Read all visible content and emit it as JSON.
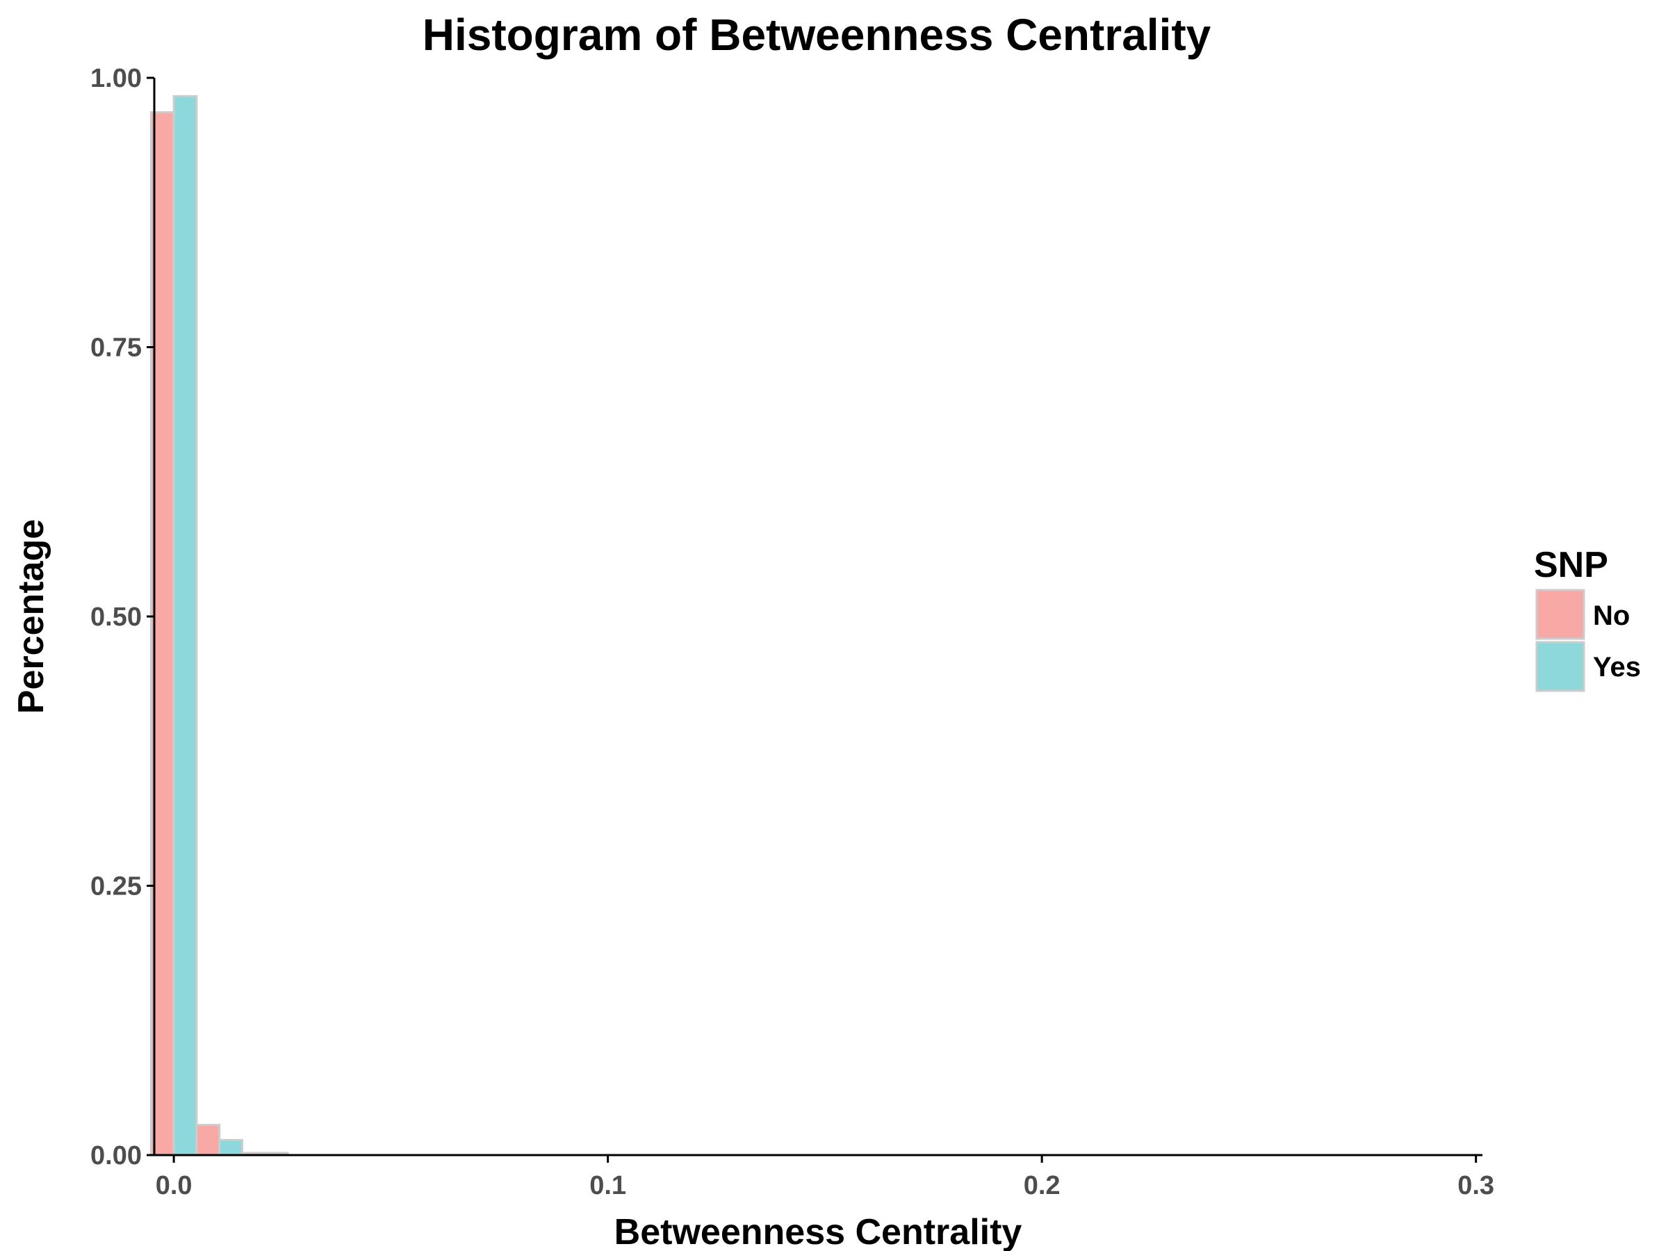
{
  "chart_data": {
    "type": "bar",
    "title": "Histogram of Betweenness Centrality",
    "xlabel": "Betweenness Centrality",
    "ylabel": "Percentage",
    "xlim": [
      -0.0045,
      0.3015
    ],
    "ylim": [
      0,
      1.0
    ],
    "x_ticks": [
      "0.0",
      "0.1",
      "0.2",
      "0.3"
    ],
    "x_tick_values": [
      0.0,
      0.1,
      0.2,
      0.3
    ],
    "y_ticks": [
      "0.00",
      "0.25",
      "0.50",
      "0.75",
      "1.00"
    ],
    "y_tick_values": [
      0.0,
      0.25,
      0.5,
      0.75,
      1.0
    ],
    "bin_width": 0.0105,
    "bin_centers": [
      0.0,
      0.0105,
      0.021
    ],
    "series": [
      {
        "name": "No",
        "color": "#F8A9A5",
        "values": [
          0.968,
          0.028,
          0.002
        ]
      },
      {
        "name": "Yes",
        "color": "#8DD8DA",
        "values": [
          0.983,
          0.014,
          0.002
        ]
      }
    ],
    "legend": {
      "title": "SNP",
      "position": "right"
    },
    "grid": false
  }
}
